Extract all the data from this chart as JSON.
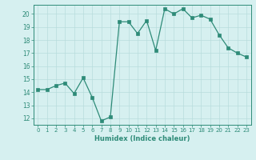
{
  "x": [
    0,
    1,
    2,
    3,
    4,
    5,
    6,
    7,
    8,
    9,
    10,
    11,
    12,
    13,
    14,
    15,
    16,
    17,
    18,
    19,
    20,
    21,
    22,
    23
  ],
  "y": [
    14.2,
    14.2,
    14.5,
    14.7,
    13.9,
    15.1,
    13.6,
    11.8,
    12.1,
    19.4,
    19.4,
    18.5,
    19.5,
    17.2,
    20.4,
    20.0,
    20.4,
    19.7,
    19.9,
    19.6,
    18.4,
    17.4,
    17.0,
    16.7
  ],
  "xlabel": "Humidex (Indice chaleur)",
  "ylim": [
    11.5,
    20.7
  ],
  "xlim": [
    -0.5,
    23.5
  ],
  "yticks": [
    12,
    13,
    14,
    15,
    16,
    17,
    18,
    19,
    20
  ],
  "xticks": [
    0,
    1,
    2,
    3,
    4,
    5,
    6,
    7,
    8,
    9,
    10,
    11,
    12,
    13,
    14,
    15,
    16,
    17,
    18,
    19,
    20,
    21,
    22,
    23
  ],
  "line_color": "#2e8b78",
  "marker_color": "#2e8b78",
  "bg_color": "#d6f0f0",
  "grid_color": "#b8dcdc",
  "xlabel_color": "#2e8b78",
  "tick_color": "#2e8b78",
  "spine_color": "#2e8b78"
}
